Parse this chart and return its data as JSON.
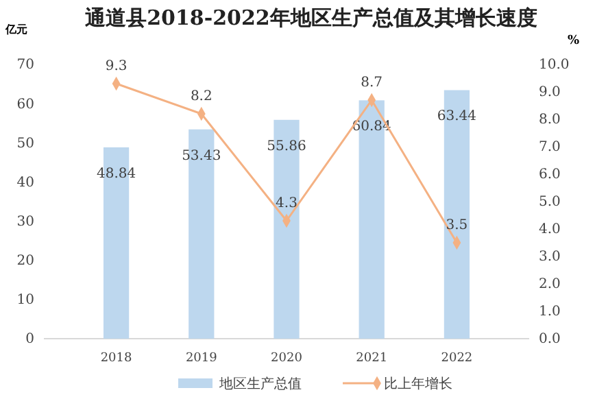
{
  "chart_data": {
    "type": "bar",
    "title": "通道县2018-2022年地区生产总值及其增长速度",
    "ylabel": "亿元",
    "y2label": "%",
    "categories": [
      "2018",
      "2019",
      "2020",
      "2021",
      "2022"
    ],
    "series": [
      {
        "name": "地区生产总值",
        "color": "#bdd7ee",
        "values": [
          48.84,
          53.43,
          55.86,
          60.84,
          63.44
        ]
      },
      {
        "name": "比上年增长",
        "type": "line",
        "axis": "y2",
        "color": "#f4b183",
        "marker": "diamond",
        "values": [
          9.3,
          8.2,
          4.3,
          8.7,
          3.5
        ]
      }
    ],
    "ylim": [
      0,
      70
    ],
    "yticks": [
      0,
      10,
      20,
      30,
      40,
      50,
      60,
      70
    ],
    "y2lim": [
      0,
      10
    ],
    "y2ticks": [
      {
        "value": 0,
        "label": "0.0"
      },
      {
        "value": 1,
        "label": "1.0"
      },
      {
        "value": 2,
        "label": "2.0"
      },
      {
        "value": 3,
        "label": "3.0"
      },
      {
        "value": 4,
        "label": "4.0"
      },
      {
        "value": 5,
        "label": "5.0"
      },
      {
        "value": 6,
        "label": "6.0"
      },
      {
        "value": 7,
        "label": "7.0"
      },
      {
        "value": 8,
        "label": "8.0"
      },
      {
        "value": 9,
        "label": "9.0"
      },
      {
        "value": 10,
        "label": "10.0"
      }
    ],
    "data_labels": true,
    "legend": "bottom",
    "grid": false
  }
}
